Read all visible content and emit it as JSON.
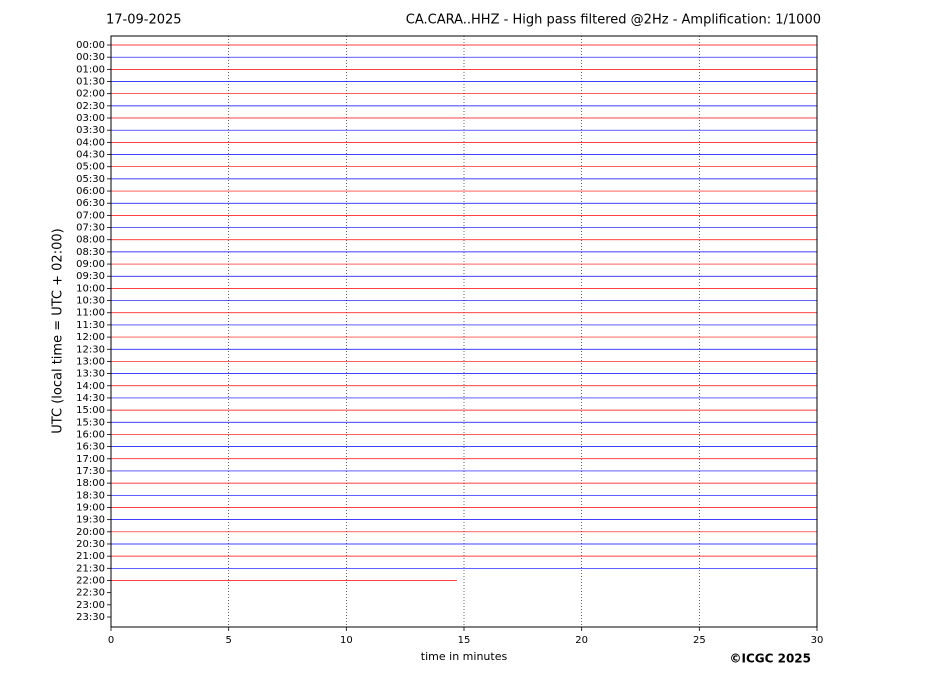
{
  "chart_data": {
    "type": "helicorder",
    "date": "17-09-2025",
    "title": "CA.CARA..HHZ - High pass filtered @2Hz - Amplification: 1/1000",
    "y_label": "UTC (local time = UTC + 02:00)",
    "x_label": "time in minutes",
    "copyright": "©ICGC 2025",
    "categories": [
      "00:00",
      "00:30",
      "01:00",
      "01:30",
      "02:00",
      "02:30",
      "03:00",
      "03:30",
      "04:00",
      "04:30",
      "05:00",
      "05:30",
      "06:00",
      "06:30",
      "07:00",
      "07:30",
      "08:00",
      "08:30",
      "09:00",
      "09:30",
      "10:00",
      "10:30",
      "11:00",
      "11:30",
      "12:00",
      "12:30",
      "13:00",
      "13:30",
      "14:00",
      "14:30",
      "15:00",
      "15:30",
      "16:00",
      "16:30",
      "17:00",
      "17:30",
      "18:00",
      "18:30",
      "19:00",
      "19:30",
      "20:00",
      "20:30",
      "21:00",
      "21:30",
      "22:00",
      "22:30",
      "23:00",
      "23:30"
    ],
    "values": [
      30,
      30,
      30,
      30,
      30,
      30,
      30,
      30,
      30,
      30,
      30,
      30,
      30,
      30,
      30,
      30,
      30,
      30,
      30,
      30,
      30,
      30,
      30,
      30,
      30,
      30,
      30,
      30,
      30,
      30,
      30,
      30,
      30,
      30,
      30,
      30,
      30,
      30,
      30,
      30,
      30,
      30,
      30,
      30,
      14.7,
      null,
      null,
      null
    ],
    "colors": [
      "#ff0000",
      "#0000ff"
    ],
    "xlim": [
      0,
      30
    ],
    "xticks": [
      0,
      5,
      10,
      15,
      20,
      25,
      30
    ],
    "grid": true
  }
}
